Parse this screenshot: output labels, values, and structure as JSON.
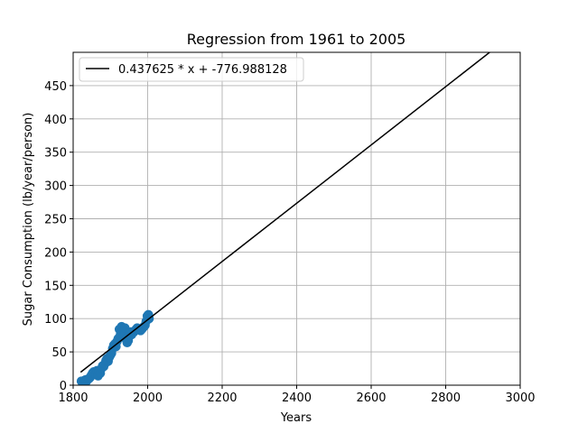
{
  "chart_data": {
    "type": "scatter",
    "title": "Regression from 1961 to 2005",
    "xlabel": "Years",
    "ylabel": "Sugar Consumption (lb/year/person)",
    "xlim": [
      1800,
      3000
    ],
    "ylim": [
      0,
      500
    ],
    "xticks": [
      1800,
      2000,
      2200,
      2400,
      2600,
      2800,
      3000
    ],
    "yticks": [
      0,
      50,
      100,
      150,
      200,
      250,
      300,
      350,
      400,
      450
    ],
    "grid": true,
    "legend_position": "top-left",
    "colors": {
      "points": "#1f77b4",
      "line": "#000000",
      "grid": "#b0b0b0"
    },
    "series": [
      {
        "type": "scatter",
        "x": [
          1822,
          1827,
          1830,
          1833,
          1836,
          1839,
          1843,
          1846,
          1849,
          1852,
          1855,
          1858,
          1861,
          1864,
          1867,
          1870,
          1873,
          1876,
          1879,
          1882,
          1885,
          1888,
          1891,
          1894,
          1897,
          1900,
          1903,
          1906,
          1909,
          1912,
          1915,
          1918,
          1921,
          1924,
          1927,
          1930,
          1933,
          1936,
          1939,
          1942,
          1945,
          1948,
          1951,
          1954,
          1957,
          1960,
          1963,
          1966,
          1969,
          1972,
          1975,
          1978,
          1981,
          1984,
          1987,
          1990,
          1993,
          1996,
          1999,
          2002,
          2004
        ],
        "y": [
          6,
          5,
          7,
          8,
          6,
          9,
          10,
          12,
          15,
          18,
          20,
          17,
          16,
          22,
          14,
          21,
          18,
          25,
          29,
          28,
          32,
          37,
          40,
          36,
          42,
          45,
          48,
          55,
          60,
          62,
          58,
          66,
          70,
          84,
          76,
          88,
          80,
          74,
          86,
          69,
          64,
          67,
          78,
          80,
          76,
          79,
          80,
          82,
          84,
          86,
          85,
          83,
          82,
          84,
          86,
          88,
          90,
          96,
          104,
          106,
          100
        ]
      },
      {
        "type": "line",
        "name": "0.437625 * x + -776.988128",
        "slope": 0.437625,
        "intercept": -776.988128,
        "x_range": [
          1820,
          2920
        ]
      }
    ]
  }
}
